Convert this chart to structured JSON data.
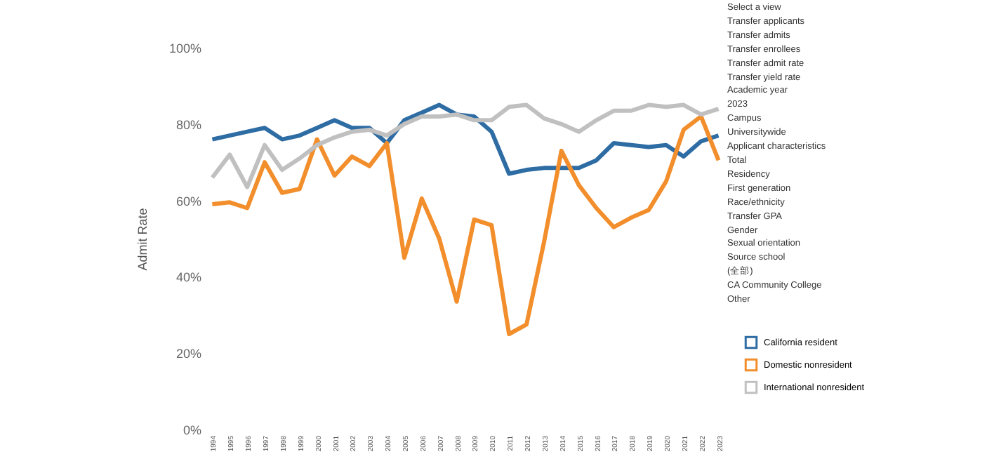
{
  "chart_data": {
    "type": "line",
    "ylabel": "Admit Rate",
    "ylim": [
      0,
      100
    ],
    "yticks": [
      {
        "value": 0,
        "label": "0%"
      },
      {
        "value": 20,
        "label": "20%"
      },
      {
        "value": 40,
        "label": "40%"
      },
      {
        "value": 60,
        "label": "60%"
      },
      {
        "value": 80,
        "label": "80%"
      },
      {
        "value": 100,
        "label": "100%"
      }
    ],
    "categories": [
      "1994",
      "1995",
      "1996",
      "1997",
      "1998",
      "1999",
      "2000",
      "2001",
      "2002",
      "2003",
      "2004",
      "2005",
      "2006",
      "2007",
      "2008",
      "2009",
      "2010",
      "2011",
      "2012",
      "2013",
      "2014",
      "2015",
      "2016",
      "2017",
      "2018",
      "2019",
      "2020",
      "2021",
      "2022",
      "2023"
    ],
    "series": [
      {
        "name": "California resident",
        "color": "#2e6ca4",
        "values": [
          76,
          77,
          78,
          79,
          76,
          77,
          79,
          81,
          79,
          79,
          75,
          81,
          83,
          85,
          82.5,
          82,
          78,
          67,
          68,
          68.5,
          68.5,
          68.5,
          70.5,
          75,
          74.5,
          74,
          74.5,
          71.5,
          75.5,
          77
        ]
      },
      {
        "name": "Domestic nonresident",
        "color": "#f28e2b",
        "values": [
          59,
          59.5,
          58,
          70,
          62,
          63,
          76,
          66.5,
          71.5,
          69,
          75,
          45,
          60.5,
          50,
          33.5,
          55,
          53.5,
          25,
          27.5,
          49,
          73,
          64,
          58,
          53,
          55.5,
          57.5,
          65,
          78.5,
          82,
          70.5
        ]
      },
      {
        "name": "International nonresident",
        "color": "#c0c0c0",
        "values": [
          66,
          72,
          63.5,
          74.5,
          68,
          71,
          74.5,
          76.5,
          78,
          78.5,
          77,
          80,
          82,
          82,
          82.5,
          81,
          81,
          84.5,
          85,
          81.5,
          80,
          78,
          81,
          83.5,
          83.5,
          85,
          84.5,
          85,
          82.5,
          84
        ]
      }
    ],
    "legend": "right",
    "grid": false,
    "marker": "none",
    "line_style": "solid",
    "annotations": [
      "Select a view",
      "Transfer applicants",
      "Transfer admits",
      "Transfer enrollees",
      "Transfer admit rate",
      "Transfer yield rate",
      "Academic year",
      "2023",
      "Campus",
      "Universitywide",
      "Applicant characteristics",
      "Total",
      "Residency",
      "First generation",
      "Race/ethnicity",
      "Transfer GPA",
      "Gender",
      "Sexual orientation",
      "Source school",
      "(全部)",
      "CA Community College",
      "Other"
    ]
  }
}
